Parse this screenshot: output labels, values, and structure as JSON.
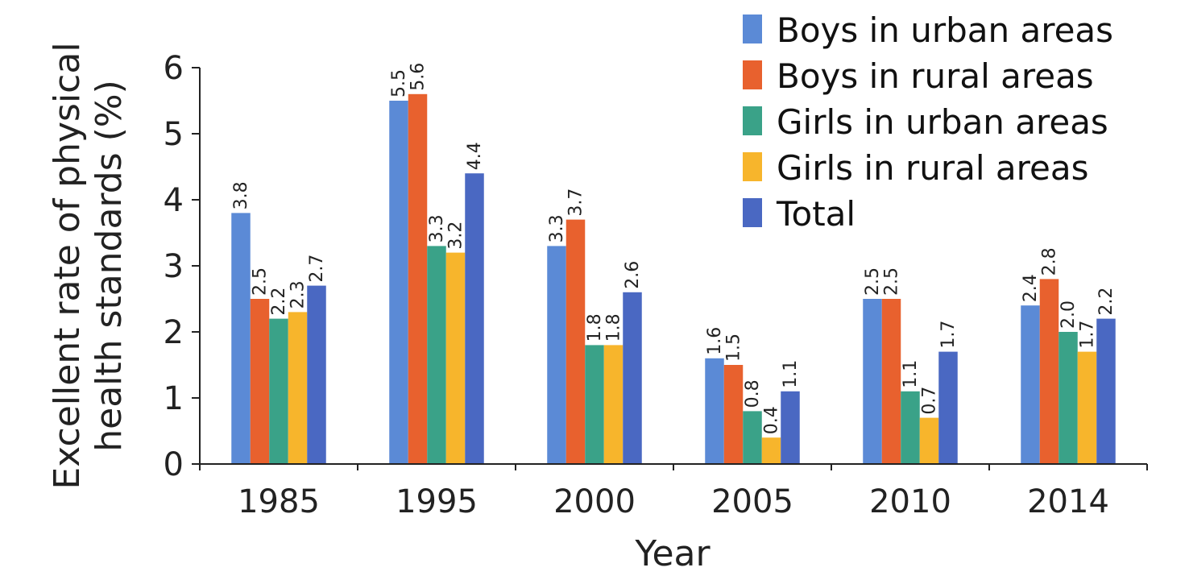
{
  "chart_data": {
    "type": "bar",
    "xlabel": "Year",
    "ylabel_lines": [
      "Excellent rate of physical",
      "health standards (%)"
    ],
    "categories": [
      "1985",
      "1995",
      "2000",
      "2005",
      "2010",
      "2014"
    ],
    "ylim": [
      0,
      6
    ],
    "yticks": [
      "0",
      "1",
      "2",
      "3",
      "4",
      "5",
      "6"
    ],
    "grid": false,
    "legend_position": "top-right",
    "series": [
      {
        "name": "Boys in urban areas",
        "color": "#5b8ad6",
        "values": [
          3.8,
          5.5,
          3.3,
          1.6,
          2.5,
          2.4
        ],
        "labels": [
          "3.8",
          "5.5",
          "3.3",
          "1.6",
          "2.5",
          "2.4"
        ]
      },
      {
        "name": "Boys in rural areas",
        "color": "#e8612e",
        "values": [
          2.5,
          5.6,
          3.7,
          1.5,
          2.5,
          2.8
        ],
        "labels": [
          "2.5",
          "5.6",
          "3.7",
          "1.5",
          "2.5",
          "2.8"
        ]
      },
      {
        "name": "Girls in urban areas",
        "color": "#3aa288",
        "values": [
          2.2,
          3.3,
          1.8,
          0.8,
          1.1,
          2.0
        ],
        "labels": [
          "2.2",
          "3.3",
          "1.8",
          "0.8",
          "1.1",
          "2.0"
        ]
      },
      {
        "name": "Girls in rural areas",
        "color": "#f7b52c",
        "values": [
          2.3,
          3.2,
          1.8,
          0.4,
          0.7,
          1.7
        ],
        "labels": [
          "2.3",
          "3.2",
          "1.8",
          "0.4",
          "0.7",
          "1.7"
        ]
      },
      {
        "name": "Total",
        "color": "#4a68c2",
        "values": [
          2.7,
          4.4,
          2.6,
          1.1,
          1.7,
          2.2
        ],
        "labels": [
          "2.7",
          "4.4",
          "2.6",
          "1.1",
          "1.7",
          "2.2"
        ]
      }
    ]
  }
}
